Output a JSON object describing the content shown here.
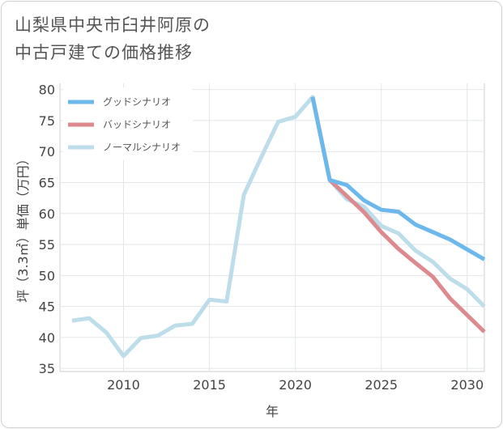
{
  "title_lines": [
    "山梨県中央市臼井阿原の",
    "中古戸建ての価格推移"
  ],
  "chart_data": {
    "type": "line",
    "xlabel": "年",
    "ylabel": "坪（3.3㎡）単価（万円）",
    "xlim": [
      2006.3,
      2031
    ],
    "ylim": [
      34.5,
      81
    ],
    "xticks": [
      2010,
      2015,
      2020,
      2025,
      2030
    ],
    "yticks": [
      35,
      40,
      45,
      50,
      55,
      60,
      65,
      70,
      75,
      80
    ],
    "grid": true,
    "legend_position": "top-left",
    "series": [
      {
        "name": "グッドシナリオ",
        "color": "#6cb8ec",
        "x": [
          2021,
          2022,
          2023,
          2024,
          2025,
          2026,
          2027,
          2028,
          2029,
          2030,
          2031
        ],
        "values": [
          78.8,
          65.4,
          64.6,
          62.1,
          60.6,
          60.3,
          58.2,
          57.0,
          55.8,
          54.2,
          52.6
        ]
      },
      {
        "name": "バッドシナリオ",
        "color": "#dd8a8f",
        "x": [
          2021,
          2022,
          2023,
          2024,
          2025,
          2026,
          2027,
          2028,
          2029,
          2030,
          2031
        ],
        "values": [
          78.8,
          65.4,
          62.8,
          60.2,
          57.0,
          54.3,
          52.0,
          49.8,
          46.3,
          43.6,
          40.9
        ]
      },
      {
        "name": "ノーマルシナリオ",
        "color": "#bcdde9",
        "x": [
          2007,
          2008,
          2009,
          2010,
          2011,
          2012,
          2013,
          2014,
          2015,
          2016,
          2017,
          2018,
          2019,
          2020,
          2021,
          2022,
          2023,
          2024,
          2025,
          2026,
          2027,
          2028,
          2029,
          2030,
          2031
        ],
        "values": [
          42.7,
          43.1,
          40.8,
          37.0,
          39.9,
          40.3,
          41.9,
          42.2,
          46.1,
          45.8,
          63.0,
          69.0,
          74.8,
          75.6,
          78.8,
          65.4,
          62.3,
          61.1,
          58.0,
          56.8,
          54.0,
          52.2,
          49.5,
          47.8,
          45.0
        ]
      }
    ]
  }
}
